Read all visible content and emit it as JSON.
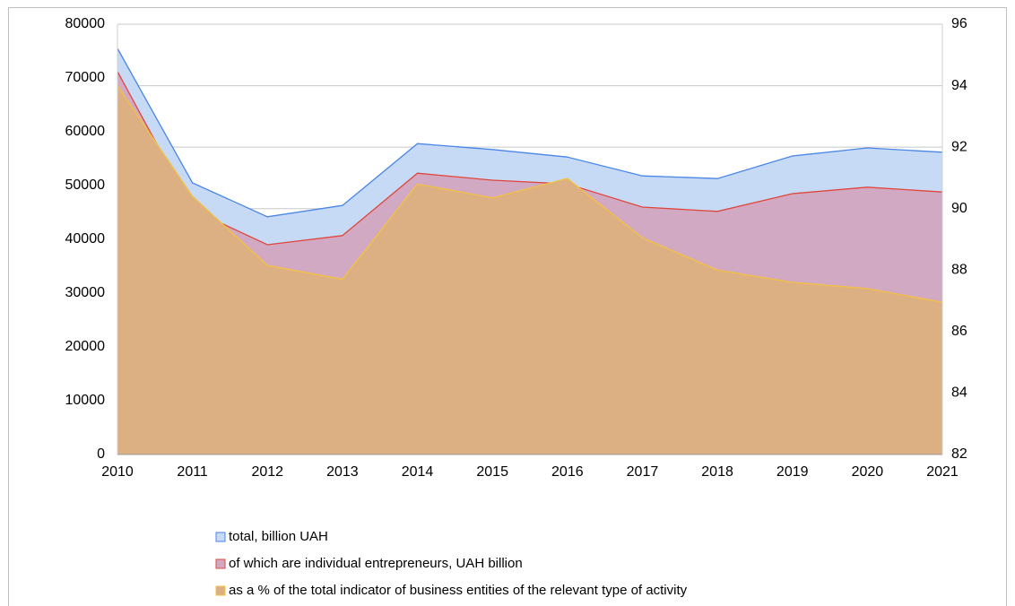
{
  "chart_data": {
    "type": "area",
    "categories": [
      "2010",
      "2011",
      "2012",
      "2013",
      "2014",
      "2015",
      "2016",
      "2017",
      "2018",
      "2019",
      "2020",
      "2021"
    ],
    "series": [
      {
        "name": "total, billion UAH",
        "color": "#4a86e8",
        "fill": "#c6daf6",
        "values": [
          75500,
          50500,
          44200,
          46300,
          57800,
          56700,
          55300,
          51800,
          51300,
          55500,
          57000,
          56200
        ]
      },
      {
        "name": "of which are individual entrepreneurs, UAH billion",
        "color": "#e0463c",
        "fill": "#d2a9c3",
        "values": [
          71200,
          45500,
          39000,
          40700,
          52300,
          51000,
          50300,
          46000,
          45200,
          48500,
          49700,
          48800
        ]
      },
      {
        "name": "as a % of the total indicator of business entities of the relevant type of activity",
        "color": "#f3c140",
        "fill": "#ddb084",
        "axis": "y2",
        "values": [
          94.0,
          90.4,
          88.15,
          87.7,
          90.8,
          90.35,
          90.98,
          89.05,
          88.0,
          87.6,
          87.4,
          86.95
        ]
      }
    ],
    "ylim": [
      0,
      80000
    ],
    "yticks": [
      0,
      10000,
      20000,
      30000,
      40000,
      50000,
      60000,
      70000,
      80000
    ],
    "y2lim": [
      82,
      96
    ],
    "y2ticks": [
      82,
      84,
      86,
      88,
      90,
      92,
      94,
      96
    ],
    "grid": "y2",
    "legend": "bottom"
  }
}
